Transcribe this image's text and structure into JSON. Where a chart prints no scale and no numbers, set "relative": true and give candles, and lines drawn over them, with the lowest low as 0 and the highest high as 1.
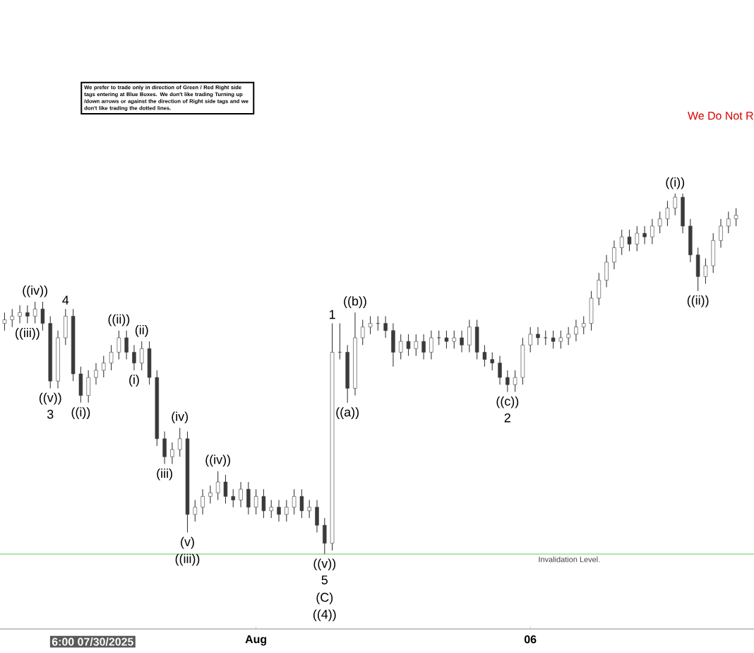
{
  "chart_data": {
    "type": "candlestick",
    "relative": true,
    "color": "#3a3a3a",
    "x": [
      "2025-07-27T10:00",
      "2025-07-27T13:20",
      "2025-07-27T16:40",
      "2025-07-27T20:00",
      "2025-07-27T23:20",
      "2025-07-28T02:40",
      "2025-07-28T06:00",
      "2025-07-28T09:20",
      "2025-07-28T12:40",
      "2025-07-28T16:00",
      "2025-07-28T19:20",
      "2025-07-28T22:40",
      "2025-07-29T02:00",
      "2025-07-29T05:20",
      "2025-07-29T08:40",
      "2025-07-29T12:00",
      "2025-07-29T15:20",
      "2025-07-29T18:40",
      "2025-07-29T22:00",
      "2025-07-30T01:20",
      "2025-07-30T04:40",
      "2025-07-30T08:00",
      "2025-07-30T11:20",
      "2025-07-30T14:40",
      "2025-07-30T18:00",
      "2025-07-30T21:20",
      "2025-07-31T00:40",
      "2025-07-31T04:00",
      "2025-07-31T07:20",
      "2025-07-31T10:40",
      "2025-07-31T14:00",
      "2025-07-31T17:20",
      "2025-07-31T20:40",
      "2025-08-01T00:00",
      "2025-08-01T03:20",
      "2025-08-01T06:40",
      "2025-08-01T10:00",
      "2025-08-01T13:20",
      "2025-08-01T16:40",
      "2025-08-01T20:00",
      "2025-08-01T23:20",
      "2025-08-02T02:40",
      "2025-08-02T06:00",
      "2025-08-02T09:20",
      "2025-08-02T12:40",
      "2025-08-02T16:00",
      "2025-08-02T19:20",
      "2025-08-02T22:40",
      "2025-08-03T02:00",
      "2025-08-03T05:20",
      "2025-08-03T08:40",
      "2025-08-03T12:00",
      "2025-08-03T15:20",
      "2025-08-03T18:40",
      "2025-08-03T22:00",
      "2025-08-04T01:20",
      "2025-08-04T04:40",
      "2025-08-04T08:00",
      "2025-08-04T11:20",
      "2025-08-04T14:40",
      "2025-08-04T18:00",
      "2025-08-04T21:20",
      "2025-08-05T00:40",
      "2025-08-05T04:00",
      "2025-08-05T07:20",
      "2025-08-05T10:40",
      "2025-08-05T14:00",
      "2025-08-05T17:20",
      "2025-08-05T20:40",
      "2025-08-06T00:00",
      "2025-08-06T03:20",
      "2025-08-06T06:40",
      "2025-08-06T10:00",
      "2025-08-06T13:20",
      "2025-08-06T16:40",
      "2025-08-06T20:00",
      "2025-08-06T23:20",
      "2025-08-07T02:40",
      "2025-08-07T06:00",
      "2025-08-07T09:20",
      "2025-08-07T12:40",
      "2025-08-07T16:00",
      "2025-08-07T19:20",
      "2025-08-07T22:40",
      "2025-08-08T02:00",
      "2025-08-08T05:20",
      "2025-08-08T08:40",
      "2025-08-08T12:00",
      "2025-08-08T15:20",
      "2025-08-08T18:40",
      "2025-08-08T22:00",
      "2025-08-09T01:20",
      "2025-08-09T04:40",
      "2025-08-09T08:00",
      "2025-08-09T11:20",
      "2025-08-09T14:40",
      "2025-08-09T18:00"
    ],
    "ohlc": [
      [
        0.64,
        0.67,
        0.62,
        0.65
      ],
      [
        0.65,
        0.68,
        0.63,
        0.66
      ],
      [
        0.66,
        0.69,
        0.64,
        0.67
      ],
      [
        0.67,
        0.69,
        0.64,
        0.66
      ],
      [
        0.66,
        0.7,
        0.64,
        0.68
      ],
      [
        0.68,
        0.7,
        0.62,
        0.64
      ],
      [
        0.64,
        0.66,
        0.46,
        0.48
      ],
      [
        0.48,
        0.62,
        0.46,
        0.6
      ],
      [
        0.6,
        0.68,
        0.58,
        0.66
      ],
      [
        0.66,
        0.68,
        0.48,
        0.5
      ],
      [
        0.5,
        0.52,
        0.42,
        0.44
      ],
      [
        0.44,
        0.51,
        0.42,
        0.49
      ],
      [
        0.49,
        0.53,
        0.47,
        0.51
      ],
      [
        0.51,
        0.55,
        0.49,
        0.53
      ],
      [
        0.53,
        0.58,
        0.51,
        0.56
      ],
      [
        0.56,
        0.62,
        0.54,
        0.6
      ],
      [
        0.6,
        0.62,
        0.54,
        0.56
      ],
      [
        0.56,
        0.58,
        0.51,
        0.53
      ],
      [
        0.53,
        0.59,
        0.51,
        0.57
      ],
      [
        0.57,
        0.59,
        0.47,
        0.49
      ],
      [
        0.49,
        0.51,
        0.3,
        0.32
      ],
      [
        0.32,
        0.34,
        0.25,
        0.27
      ],
      [
        0.27,
        0.31,
        0.25,
        0.29
      ],
      [
        0.29,
        0.35,
        0.27,
        0.32
      ],
      [
        0.32,
        0.34,
        0.06,
        0.11
      ],
      [
        0.11,
        0.15,
        0.09,
        0.13
      ],
      [
        0.13,
        0.18,
        0.11,
        0.16
      ],
      [
        0.16,
        0.19,
        0.14,
        0.17
      ],
      [
        0.17,
        0.23,
        0.15,
        0.2
      ],
      [
        0.2,
        0.22,
        0.14,
        0.16
      ],
      [
        0.16,
        0.18,
        0.13,
        0.15
      ],
      [
        0.15,
        0.2,
        0.13,
        0.18
      ],
      [
        0.18,
        0.2,
        0.11,
        0.13
      ],
      [
        0.13,
        0.18,
        0.11,
        0.16
      ],
      [
        0.16,
        0.18,
        0.1,
        0.12
      ],
      [
        0.12,
        0.15,
        0.1,
        0.13
      ],
      [
        0.13,
        0.15,
        0.09,
        0.11
      ],
      [
        0.11,
        0.15,
        0.09,
        0.13
      ],
      [
        0.13,
        0.18,
        0.11,
        0.16
      ],
      [
        0.16,
        0.18,
        0.1,
        0.12
      ],
      [
        0.12,
        0.15,
        0.1,
        0.13
      ],
      [
        0.13,
        0.15,
        0.06,
        0.08
      ],
      [
        0.08,
        0.1,
        0.0,
        0.03
      ],
      [
        0.03,
        0.64,
        0.01,
        0.56
      ],
      [
        0.56,
        0.64,
        0.54,
        0.56
      ],
      [
        0.56,
        0.58,
        0.42,
        0.46
      ],
      [
        0.46,
        0.67,
        0.44,
        0.6
      ],
      [
        0.6,
        0.65,
        0.58,
        0.63
      ],
      [
        0.63,
        0.66,
        0.61,
        0.64
      ],
      [
        0.64,
        0.66,
        0.62,
        0.64
      ],
      [
        0.64,
        0.66,
        0.6,
        0.62
      ],
      [
        0.62,
        0.64,
        0.52,
        0.56
      ],
      [
        0.56,
        0.61,
        0.54,
        0.59
      ],
      [
        0.59,
        0.61,
        0.55,
        0.57
      ],
      [
        0.57,
        0.61,
        0.55,
        0.59
      ],
      [
        0.59,
        0.61,
        0.54,
        0.56
      ],
      [
        0.56,
        0.62,
        0.54,
        0.6
      ],
      [
        0.6,
        0.62,
        0.58,
        0.6
      ],
      [
        0.6,
        0.62,
        0.57,
        0.59
      ],
      [
        0.59,
        0.62,
        0.57,
        0.6
      ],
      [
        0.6,
        0.62,
        0.56,
        0.58
      ],
      [
        0.58,
        0.65,
        0.56,
        0.63
      ],
      [
        0.63,
        0.65,
        0.54,
        0.56
      ],
      [
        0.56,
        0.58,
        0.52,
        0.54
      ],
      [
        0.54,
        0.56,
        0.51,
        0.53
      ],
      [
        0.53,
        0.55,
        0.47,
        0.49
      ],
      [
        0.49,
        0.51,
        0.45,
        0.47
      ],
      [
        0.47,
        0.51,
        0.45,
        0.49
      ],
      [
        0.49,
        0.6,
        0.47,
        0.58
      ],
      [
        0.58,
        0.63,
        0.56,
        0.61
      ],
      [
        0.61,
        0.63,
        0.58,
        0.6
      ],
      [
        0.6,
        0.62,
        0.58,
        0.6
      ],
      [
        0.6,
        0.62,
        0.57,
        0.59
      ],
      [
        0.59,
        0.62,
        0.57,
        0.6
      ],
      [
        0.6,
        0.63,
        0.58,
        0.61
      ],
      [
        0.61,
        0.65,
        0.59,
        0.63
      ],
      [
        0.63,
        0.66,
        0.61,
        0.64
      ],
      [
        0.64,
        0.73,
        0.62,
        0.71
      ],
      [
        0.71,
        0.78,
        0.69,
        0.76
      ],
      [
        0.76,
        0.83,
        0.74,
        0.81
      ],
      [
        0.81,
        0.87,
        0.79,
        0.85
      ],
      [
        0.85,
        0.9,
        0.83,
        0.88
      ],
      [
        0.88,
        0.9,
        0.84,
        0.86
      ],
      [
        0.86,
        0.91,
        0.84,
        0.89
      ],
      [
        0.89,
        0.91,
        0.86,
        0.88
      ],
      [
        0.88,
        0.93,
        0.86,
        0.91
      ],
      [
        0.91,
        0.95,
        0.89,
        0.93
      ],
      [
        0.93,
        0.98,
        0.91,
        0.96
      ],
      [
        0.96,
        1.0,
        0.94,
        0.99
      ],
      [
        0.99,
        1.0,
        0.89,
        0.91
      ],
      [
        0.91,
        0.93,
        0.81,
        0.83
      ],
      [
        0.83,
        0.85,
        0.73,
        0.77
      ],
      [
        0.77,
        0.82,
        0.75,
        0.8
      ],
      [
        0.8,
        0.89,
        0.78,
        0.87
      ],
      [
        0.87,
        0.93,
        0.85,
        0.91
      ],
      [
        0.91,
        0.95,
        0.89,
        0.93
      ],
      [
        0.93,
        0.96,
        0.91,
        0.94
      ]
    ],
    "xlim": [
      "2025-07-27T08:00",
      "2025-08-10T01:51"
    ],
    "xticks": [
      {
        "value": "2025-08-01",
        "label": "Aug"
      },
      {
        "value": "2025-08-06",
        "label": "06"
      }
    ],
    "grid": false,
    "ref_lines": [
      {
        "axis": "y",
        "value": 0,
        "label": "Invalidation Level.",
        "color": "#8fe08f"
      }
    ],
    "annotations": [
      "We prefer to trade only in direction of Green / Red Right side tags entering at Blue Boxes. We don't like trading Turning up /down arrows or against the direction of Right side tags and we don't like trading the dotted lines.",
      "We Do Not R",
      "6:00 07/30/2025",
      {
        "text": "((iv))",
        "x": "2025-07-27T23:20",
        "y": 0.7
      },
      {
        "text": "((iii))",
        "x": "2025-07-27T20:00",
        "y": 0.64
      },
      {
        "text": "4",
        "x": "2025-07-28T12:40",
        "y": 0.68
      },
      {
        "text": "((v))",
        "x": "2025-07-28T06:00",
        "y": 0.46
      },
      {
        "text": "3",
        "x": "2025-07-28T06:00",
        "y": 0.46
      },
      {
        "text": "((i))",
        "x": "2025-07-28T19:20",
        "y": 0.42
      },
      {
        "text": "((ii))",
        "x": "2025-07-29T12:00",
        "y": 0.62
      },
      {
        "text": "(ii)",
        "x": "2025-07-29T22:00",
        "y": 0.59
      },
      {
        "text": "(i)",
        "x": "2025-07-29T18:40",
        "y": 0.51
      },
      {
        "text": "(iv)",
        "x": "2025-07-30T14:40",
        "y": 0.35
      },
      {
        "text": "(iii)",
        "x": "2025-07-30T08:00",
        "y": 0.25
      },
      {
        "text": "((iv))",
        "x": "2025-07-31T07:20",
        "y": 0.23
      },
      {
        "text": "(v)",
        "x": "2025-07-30T18:00",
        "y": 0.06
      },
      {
        "text": "((iii))",
        "x": "2025-07-30T18:00",
        "y": 0.06
      },
      {
        "text": "((v))",
        "x": "2025-08-02T06:00",
        "y": 0.0
      },
      {
        "text": "5",
        "x": "2025-08-02T06:00",
        "y": 0.0
      },
      "(C)",
      "((4))",
      {
        "text": "1",
        "x": "2025-08-02T09:20",
        "y": 0.64
      },
      {
        "text": "((b))",
        "x": "2025-08-02T19:20",
        "y": 0.67
      },
      {
        "text": "((a))",
        "x": "2025-08-02T16:00",
        "y": 0.42
      },
      {
        "text": "((c))",
        "x": "2025-08-05T14:00",
        "y": 0.45
      },
      {
        "text": "2",
        "x": "2025-08-05T14:00",
        "y": 0.45
      },
      {
        "text": "((i))",
        "x": "2025-08-08T15:20",
        "y": 1.0
      },
      {
        "text": "((ii))",
        "x": "2025-08-09T01:20",
        "y": 0.73
      }
    ]
  }
}
